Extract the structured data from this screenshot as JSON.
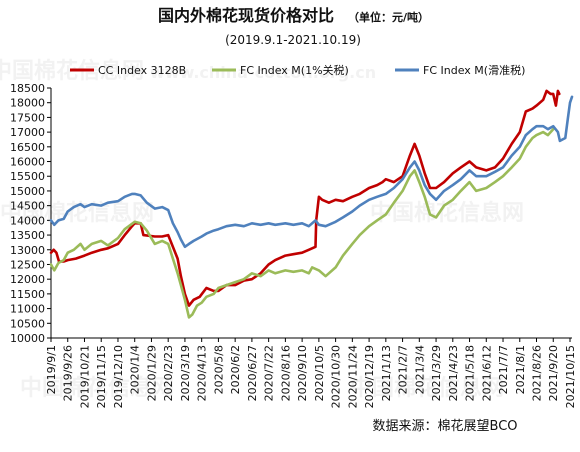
{
  "title": "国内外棉花现货价格对比",
  "unit": "（单位：元/吨）",
  "subtitle": "(2019.9.1-2021.10.19)",
  "source": "数据来源：棉花展望BCO",
  "watermark": {
    "brand": "中国棉花信息网",
    "url": "www.china-cotton.org.cn"
  },
  "chart_data": {
    "type": "line",
    "ylim": [
      10000,
      18500
    ],
    "yticks": [
      10000,
      10500,
      11000,
      11500,
      12000,
      12500,
      13000,
      13500,
      14000,
      14500,
      15000,
      15500,
      16000,
      16500,
      17000,
      17500,
      18000,
      18500
    ],
    "ytick_labels": [
      "10000",
      "10500",
      "11000",
      "11500",
      "12000",
      "12500",
      "13000",
      "13500",
      "14000",
      "14500",
      "15000",
      "15500",
      "16000",
      "16500",
      "17000",
      "17500",
      "18000",
      "18500"
    ],
    "xlim": [
      "2019-09-01",
      "2021-10-18"
    ],
    "xticks": [
      "2019-09-01",
      "2019-09-26",
      "2019-10-21",
      "2019-11-15",
      "2019-12-10",
      "2020-01-04",
      "2020-01-29",
      "2020-02-23",
      "2020-03-19",
      "2020-04-13",
      "2020-05-08",
      "2020-06-02",
      "2020-06-27",
      "2020-07-22",
      "2020-08-16",
      "2020-09-10",
      "2020-10-05",
      "2020-10-30",
      "2020-11-24",
      "2020-12-19",
      "2021-01-13",
      "2021-02-07",
      "2021-03-04",
      "2021-03-29",
      "2021-04-23",
      "2021-05-18",
      "2021-06-12",
      "2021-07-07",
      "2021-08-01",
      "2021-08-26",
      "2021-09-20",
      "2021-10-15"
    ],
    "xtick_labels": [
      "2019/9/1",
      "2019/9/26",
      "2019/10/21",
      "2019/11/15",
      "2019/12/10",
      "2020/1/4",
      "2020/1/29",
      "2020/2/23",
      "2020/3/19",
      "2020/4/13",
      "2020/5/8",
      "2020/6/2",
      "2020/6/27",
      "2020/7/22",
      "2020/8/16",
      "2020/9/10",
      "2020/10/5",
      "2020/10/30",
      "2020/11/24",
      "2020/12/19",
      "2021/1/13",
      "2021/2/7",
      "2021/3/4",
      "2021/3/29",
      "2021/4/23",
      "2021/5/18",
      "2021/6/12",
      "2021/7/7",
      "2021/8/1",
      "2021/8/26",
      "2021/9/20",
      "2021/10/15"
    ],
    "grid": false,
    "legend_position": "top",
    "series": [
      {
        "name": "CC Index 3128B",
        "color": "#c00000",
        "points": [
          [
            "2019-09-01",
            12900
          ],
          [
            "2019-09-05",
            13000
          ],
          [
            "2019-09-09",
            12900
          ],
          [
            "2019-09-13",
            12600
          ],
          [
            "2019-09-20",
            12600
          ],
          [
            "2019-09-26",
            12650
          ],
          [
            "2019-10-08",
            12700
          ],
          [
            "2019-10-21",
            12800
          ],
          [
            "2019-11-01",
            12900
          ],
          [
            "2019-11-15",
            13000
          ],
          [
            "2019-11-25",
            13050
          ],
          [
            "2019-12-10",
            13200
          ],
          [
            "2019-12-20",
            13500
          ],
          [
            "2019-12-31",
            13800
          ],
          [
            "2020-01-04",
            13900
          ],
          [
            "2020-01-13",
            13900
          ],
          [
            "2020-01-17",
            13500
          ],
          [
            "2020-02-03",
            13450
          ],
          [
            "2020-02-14",
            13450
          ],
          [
            "2020-02-23",
            13500
          ],
          [
            "2020-03-01",
            13100
          ],
          [
            "2020-03-08",
            12700
          ],
          [
            "2020-03-13",
            12100
          ],
          [
            "2020-03-19",
            11500
          ],
          [
            "2020-03-25",
            11100
          ],
          [
            "2020-04-01",
            11300
          ],
          [
            "2020-04-10",
            11400
          ],
          [
            "2020-04-20",
            11700
          ],
          [
            "2020-05-01",
            11600
          ],
          [
            "2020-05-08",
            11600
          ],
          [
            "2020-05-20",
            11800
          ],
          [
            "2020-06-02",
            11800
          ],
          [
            "2020-06-15",
            11950
          ],
          [
            "2020-06-27",
            12000
          ],
          [
            "2020-07-10",
            12200
          ],
          [
            "2020-07-22",
            12500
          ],
          [
            "2020-08-01",
            12650
          ],
          [
            "2020-08-16",
            12800
          ],
          [
            "2020-08-28",
            12850
          ],
          [
            "2020-09-10",
            12900
          ],
          [
            "2020-09-20",
            13000
          ],
          [
            "2020-09-30",
            13100
          ],
          [
            "2020-10-01",
            14000
          ],
          [
            "2020-10-05",
            14800
          ],
          [
            "2020-10-10",
            14700
          ],
          [
            "2020-10-20",
            14600
          ],
          [
            "2020-10-30",
            14700
          ],
          [
            "2020-11-10",
            14650
          ],
          [
            "2020-11-24",
            14800
          ],
          [
            "2020-12-05",
            14900
          ],
          [
            "2020-12-19",
            15100
          ],
          [
            "2020-12-31",
            15200
          ],
          [
            "2021-01-08",
            15300
          ],
          [
            "2021-01-13",
            15400
          ],
          [
            "2021-01-25",
            15300
          ],
          [
            "2021-02-07",
            15500
          ],
          [
            "2021-02-18",
            16200
          ],
          [
            "2021-02-25",
            16600
          ],
          [
            "2021-03-04",
            16200
          ],
          [
            "2021-03-12",
            15600
          ],
          [
            "2021-03-20",
            15100
          ],
          [
            "2021-03-29",
            15100
          ],
          [
            "2021-04-10",
            15300
          ],
          [
            "2021-04-23",
            15600
          ],
          [
            "2021-05-05",
            15800
          ],
          [
            "2021-05-18",
            16000
          ],
          [
            "2021-05-28",
            15800
          ],
          [
            "2021-06-12",
            15700
          ],
          [
            "2021-06-25",
            15800
          ],
          [
            "2021-07-07",
            16100
          ],
          [
            "2021-07-20",
            16600
          ],
          [
            "2021-08-01",
            17000
          ],
          [
            "2021-08-10",
            17700
          ],
          [
            "2021-08-20",
            17800
          ],
          [
            "2021-08-26",
            17900
          ],
          [
            "2021-09-05",
            18100
          ],
          [
            "2021-09-10",
            18400
          ],
          [
            "2021-09-16",
            18300
          ],
          [
            "2021-09-20",
            18300
          ],
          [
            "2021-09-24",
            17900
          ],
          [
            "2021-09-27",
            18400
          ],
          [
            "2021-09-29",
            18300
          ]
        ]
      },
      {
        "name": "FC Index M(1%关税)",
        "color": "#9bbb59",
        "points": [
          [
            "2019-09-01",
            12500
          ],
          [
            "2019-09-06",
            12300
          ],
          [
            "2019-09-12",
            12550
          ],
          [
            "2019-09-20",
            12650
          ],
          [
            "2019-09-26",
            12900
          ],
          [
            "2019-10-05",
            13000
          ],
          [
            "2019-10-15",
            13200
          ],
          [
            "2019-10-21",
            13000
          ],
          [
            "2019-11-01",
            13200
          ],
          [
            "2019-11-15",
            13300
          ],
          [
            "2019-11-25",
            13150
          ],
          [
            "2019-12-10",
            13400
          ],
          [
            "2019-12-20",
            13700
          ],
          [
            "2020-01-04",
            13950
          ],
          [
            "2020-01-13",
            13900
          ],
          [
            "2020-01-22",
            13650
          ],
          [
            "2020-02-03",
            13200
          ],
          [
            "2020-02-14",
            13300
          ],
          [
            "2020-02-23",
            13200
          ],
          [
            "2020-03-01",
            12700
          ],
          [
            "2020-03-08",
            12200
          ],
          [
            "2020-03-13",
            11800
          ],
          [
            "2020-03-19",
            11300
          ],
          [
            "2020-03-25",
            10700
          ],
          [
            "2020-03-30",
            10800
          ],
          [
            "2020-04-06",
            11100
          ],
          [
            "2020-04-13",
            11200
          ],
          [
            "2020-04-20",
            11400
          ],
          [
            "2020-05-01",
            11500
          ],
          [
            "2020-05-08",
            11700
          ],
          [
            "2020-05-20",
            11800
          ],
          [
            "2020-06-02",
            11900
          ],
          [
            "2020-06-15",
            12000
          ],
          [
            "2020-06-27",
            12200
          ],
          [
            "2020-07-10",
            12100
          ],
          [
            "2020-07-22",
            12300
          ],
          [
            "2020-08-01",
            12200
          ],
          [
            "2020-08-16",
            12300
          ],
          [
            "2020-08-28",
            12250
          ],
          [
            "2020-09-10",
            12300
          ],
          [
            "2020-09-20",
            12200
          ],
          [
            "2020-09-25",
            12400
          ],
          [
            "2020-10-05",
            12300
          ],
          [
            "2020-10-15",
            12100
          ],
          [
            "2020-10-30",
            12400
          ],
          [
            "2020-11-10",
            12800
          ],
          [
            "2020-11-24",
            13200
          ],
          [
            "2020-12-05",
            13500
          ],
          [
            "2020-12-19",
            13800
          ],
          [
            "2020-12-31",
            14000
          ],
          [
            "2021-01-13",
            14200
          ],
          [
            "2021-01-25",
            14600
          ],
          [
            "2021-02-07",
            15000
          ],
          [
            "2021-02-18",
            15500
          ],
          [
            "2021-02-25",
            15700
          ],
          [
            "2021-03-04",
            15300
          ],
          [
            "2021-03-12",
            14800
          ],
          [
            "2021-03-20",
            14200
          ],
          [
            "2021-03-29",
            14100
          ],
          [
            "2021-04-10",
            14500
          ],
          [
            "2021-04-23",
            14700
          ],
          [
            "2021-05-05",
            15000
          ],
          [
            "2021-05-18",
            15300
          ],
          [
            "2021-05-28",
            15000
          ],
          [
            "2021-06-12",
            15100
          ],
          [
            "2021-06-25",
            15300
          ],
          [
            "2021-07-07",
            15500
          ],
          [
            "2021-07-20",
            15800
          ],
          [
            "2021-08-01",
            16100
          ],
          [
            "2021-08-10",
            16500
          ],
          [
            "2021-08-20",
            16800
          ],
          [
            "2021-08-26",
            16900
          ],
          [
            "2021-09-05",
            17000
          ],
          [
            "2021-09-12",
            16900
          ],
          [
            "2021-09-20",
            17100
          ]
        ]
      },
      {
        "name": "FC Index M(滑准税)",
        "color": "#4f81bd",
        "points": [
          [
            "2019-09-01",
            14000
          ],
          [
            "2019-09-06",
            13850
          ],
          [
            "2019-09-12",
            14000
          ],
          [
            "2019-09-20",
            14050
          ],
          [
            "2019-09-26",
            14300
          ],
          [
            "2019-10-05",
            14450
          ],
          [
            "2019-10-15",
            14550
          ],
          [
            "2019-10-21",
            14450
          ],
          [
            "2019-11-01",
            14550
          ],
          [
            "2019-11-15",
            14500
          ],
          [
            "2019-11-25",
            14600
          ],
          [
            "2019-12-10",
            14650
          ],
          [
            "2019-12-20",
            14800
          ],
          [
            "2019-12-31",
            14900
          ],
          [
            "2020-01-04",
            14900
          ],
          [
            "2020-01-13",
            14850
          ],
          [
            "2020-01-22",
            14600
          ],
          [
            "2020-02-03",
            14400
          ],
          [
            "2020-02-14",
            14450
          ],
          [
            "2020-02-23",
            14350
          ],
          [
            "2020-03-01",
            13900
          ],
          [
            "2020-03-08",
            13600
          ],
          [
            "2020-03-13",
            13350
          ],
          [
            "2020-03-19",
            13100
          ],
          [
            "2020-03-25",
            13200
          ],
          [
            "2020-04-01",
            13300
          ],
          [
            "2020-04-13",
            13450
          ],
          [
            "2020-04-20",
            13550
          ],
          [
            "2020-05-01",
            13650
          ],
          [
            "2020-05-08",
            13700
          ],
          [
            "2020-05-20",
            13800
          ],
          [
            "2020-06-02",
            13850
          ],
          [
            "2020-06-15",
            13800
          ],
          [
            "2020-06-27",
            13900
          ],
          [
            "2020-07-10",
            13850
          ],
          [
            "2020-07-22",
            13900
          ],
          [
            "2020-08-01",
            13850
          ],
          [
            "2020-08-16",
            13900
          ],
          [
            "2020-08-28",
            13850
          ],
          [
            "2020-09-10",
            13900
          ],
          [
            "2020-09-20",
            13800
          ],
          [
            "2020-09-30",
            14000
          ],
          [
            "2020-10-05",
            13850
          ],
          [
            "2020-10-15",
            13800
          ],
          [
            "2020-10-30",
            13950
          ],
          [
            "2020-11-10",
            14100
          ],
          [
            "2020-11-24",
            14300
          ],
          [
            "2020-12-05",
            14500
          ],
          [
            "2020-12-19",
            14700
          ],
          [
            "2020-12-31",
            14800
          ],
          [
            "2021-01-13",
            14900
          ],
          [
            "2021-01-25",
            15100
          ],
          [
            "2021-02-07",
            15400
          ],
          [
            "2021-02-18",
            15800
          ],
          [
            "2021-02-25",
            16000
          ],
          [
            "2021-03-04",
            15700
          ],
          [
            "2021-03-12",
            15200
          ],
          [
            "2021-03-20",
            14900
          ],
          [
            "2021-03-29",
            14700
          ],
          [
            "2021-04-10",
            15000
          ],
          [
            "2021-04-23",
            15200
          ],
          [
            "2021-05-05",
            15400
          ],
          [
            "2021-05-18",
            15700
          ],
          [
            "2021-05-28",
            15500
          ],
          [
            "2021-06-12",
            15500
          ],
          [
            "2021-06-25",
            15650
          ],
          [
            "2021-07-07",
            15800
          ],
          [
            "2021-07-20",
            16200
          ],
          [
            "2021-08-01",
            16500
          ],
          [
            "2021-08-10",
            16900
          ],
          [
            "2021-08-20",
            17100
          ],
          [
            "2021-08-26",
            17200
          ],
          [
            "2021-09-05",
            17200
          ],
          [
            "2021-09-12",
            17100
          ],
          [
            "2021-09-20",
            17200
          ],
          [
            "2021-09-27",
            17000
          ],
          [
            "2021-09-30",
            16700
          ],
          [
            "2021-10-08",
            16800
          ],
          [
            "2021-10-12",
            17500
          ],
          [
            "2021-10-15",
            18000
          ],
          [
            "2021-10-18",
            18200
          ]
        ]
      }
    ]
  }
}
